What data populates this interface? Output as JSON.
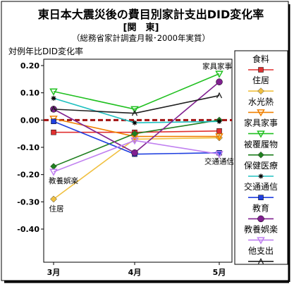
{
  "chart_data": {
    "type": "line",
    "title": "東日本大震災後の費目別家計支出DID変化率",
    "subtitle": "[関　東]",
    "note": "（総務省家計調査月報･2000年実質）",
    "ylabel": "対例年比DID変化率",
    "xlabel": "",
    "categories": [
      "3月",
      "4月",
      "5月"
    ],
    "ylim": [
      -0.4,
      0.2
    ],
    "yticks": [
      0.2,
      0.1,
      0.0,
      -0.1,
      -0.2,
      -0.3,
      -0.4
    ],
    "ytick_labels": [
      "0.20",
      "0.10",
      "0.00",
      "-0.10",
      "-0.20",
      "-0.30",
      "-0.40"
    ],
    "grid": false,
    "legend": "right",
    "series": [
      {
        "name": "食料",
        "values": [
          -0.045,
          -0.045,
          -0.04
        ],
        "color": "#e03030",
        "marker": "square"
      },
      {
        "name": "住居",
        "values": [
          -0.29,
          -0.07,
          -0.065
        ],
        "color": "#f0c040",
        "marker": "diamond"
      },
      {
        "name": "水光熱",
        "values": [
          0.005,
          -0.06,
          -0.06
        ],
        "color": "#f08000",
        "marker": "triangle-down"
      },
      {
        "name": "家具家事",
        "values": [
          0.105,
          0.04,
          0.17
        ],
        "color": "#20c020",
        "marker": "triangle-down"
      },
      {
        "name": "被覆履物",
        "values": [
          -0.17,
          -0.05,
          0.0
        ],
        "color": "#208020",
        "marker": "diamond"
      },
      {
        "name": "保健医療",
        "values": [
          0.08,
          -0.01,
          -0.005
        ],
        "color": "#20c0c0",
        "marker": "star"
      },
      {
        "name": "交通通信",
        "values": [
          -0.005,
          -0.125,
          -0.12
        ],
        "color": "#2040e0",
        "marker": "square"
      },
      {
        "name": "教育",
        "values": [
          0.04,
          -0.12,
          0.14
        ],
        "color": "#802090",
        "marker": "circle"
      },
      {
        "name": "教養娯楽",
        "values": [
          -0.19,
          -0.075,
          -0.125
        ],
        "color": "#c080f0",
        "marker": "triangle-down"
      },
      {
        "name": "他支出",
        "values": [
          0.04,
          0.025,
          0.09
        ],
        "color": "#202020",
        "marker": "x"
      }
    ],
    "annotations": [
      {
        "text": "家具家事",
        "category": "5月",
        "value": 0.17
      },
      {
        "text": "交通通信",
        "category": "5月",
        "value": -0.12
      },
      {
        "text": "教養娯楽",
        "category": "3月",
        "value": -0.19
      },
      {
        "text": "住居",
        "category": "3月",
        "value": -0.29
      }
    ],
    "reference_line": {
      "value": 0.0,
      "color": "#a01010",
      "style": "dashed"
    }
  }
}
